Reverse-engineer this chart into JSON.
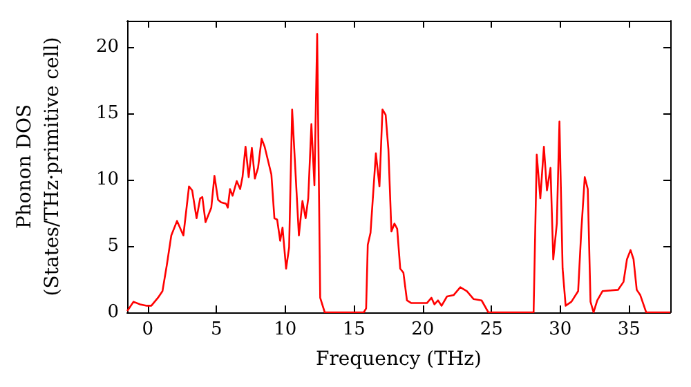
{
  "chart_data": {
    "type": "line",
    "xlabel": "Frequency (THz)",
    "ylabel": "Phonon DOS\n(States/THz·primitive cell)",
    "xlim": [
      -1.5,
      38
    ],
    "xticks": [
      0,
      5,
      10,
      15,
      20,
      25,
      30,
      35
    ],
    "ylim": [
      0,
      22
    ],
    "yticks": [
      0,
      5,
      10,
      15,
      20
    ],
    "grid": false,
    "marker": "none",
    "line_style": "solid",
    "x": [
      -1.5,
      -1.36,
      -1.04,
      -0.55,
      -0.07,
      0.26,
      0.74,
      1.07,
      1.39,
      1.71,
      2.13,
      2.59,
      3.0,
      3.23,
      3.55,
      3.81,
      3.97,
      4.2,
      4.62,
      4.85,
      5.11,
      5.33,
      5.69,
      5.82,
      5.98,
      6.17,
      6.47,
      6.72,
      6.89,
      7.11,
      7.34,
      7.57,
      7.79,
      8.02,
      8.28,
      8.5,
      8.99,
      9.21,
      9.41,
      9.63,
      9.8,
      10.06,
      10.28,
      10.5,
      10.99,
      11.25,
      11.48,
      11.67,
      11.9,
      12.12,
      12.32,
      12.54,
      12.87,
      15.71,
      15.88,
      16.0,
      16.2,
      16.59,
      16.85,
      17.07,
      17.3,
      17.5,
      17.72,
      17.94,
      18.14,
      18.36,
      18.59,
      18.85,
      19.17,
      20.3,
      20.63,
      20.85,
      21.11,
      21.37,
      21.76,
      22.24,
      22.73,
      23.21,
      23.7,
      24.28,
      24.77,
      28.06,
      28.29,
      28.55,
      28.81,
      29.03,
      29.29,
      29.49,
      29.75,
      29.94,
      30.17,
      30.39,
      30.81,
      31.3,
      31.52,
      31.78,
      32.0,
      32.2,
      32.42,
      32.69,
      33.07,
      34.2,
      34.6,
      34.85,
      35.11,
      35.33,
      35.56,
      35.82,
      36.25,
      38
    ],
    "series": [
      {
        "color": "#ff0000",
        "values": [
          0.1,
          0.3,
          0.8,
          0.6,
          0.5,
          0.5,
          1.1,
          1.6,
          3.6,
          5.8,
          6.9,
          5.8,
          9.5,
          9.2,
          7.1,
          8.6,
          8.7,
          6.8,
          7.9,
          10.3,
          8.5,
          8.3,
          8.2,
          7.9,
          9.3,
          8.8,
          9.9,
          9.3,
          10.2,
          12.5,
          10.2,
          12.4,
          10.1,
          10.9,
          13.1,
          12.5,
          10.4,
          7.1,
          7.0,
          5.4,
          6.4,
          3.3,
          4.9,
          15.3,
          5.8,
          8.4,
          7.1,
          8.6,
          14.2,
          9.6,
          21.0,
          1.1,
          0,
          0,
          0.3,
          5.1,
          6.0,
          12.0,
          9.5,
          15.3,
          14.9,
          12.3,
          6.1,
          6.7,
          6.3,
          3.3,
          3.0,
          0.9,
          0.7,
          0.7,
          1.1,
          0.6,
          0.9,
          0.5,
          1.2,
          1.3,
          1.9,
          1.6,
          1.0,
          0.9,
          0,
          0,
          11.9,
          8.6,
          12.5,
          9.2,
          10.9,
          4.0,
          6.7,
          14.4,
          3.3,
          0.5,
          0.8,
          1.6,
          6.0,
          10.2,
          9.3,
          0.8,
          0,
          0.9,
          1.6,
          1.7,
          2.3,
          4.0,
          4.7,
          4.0,
          1.7,
          1.3,
          0,
          0
        ]
      }
    ]
  }
}
